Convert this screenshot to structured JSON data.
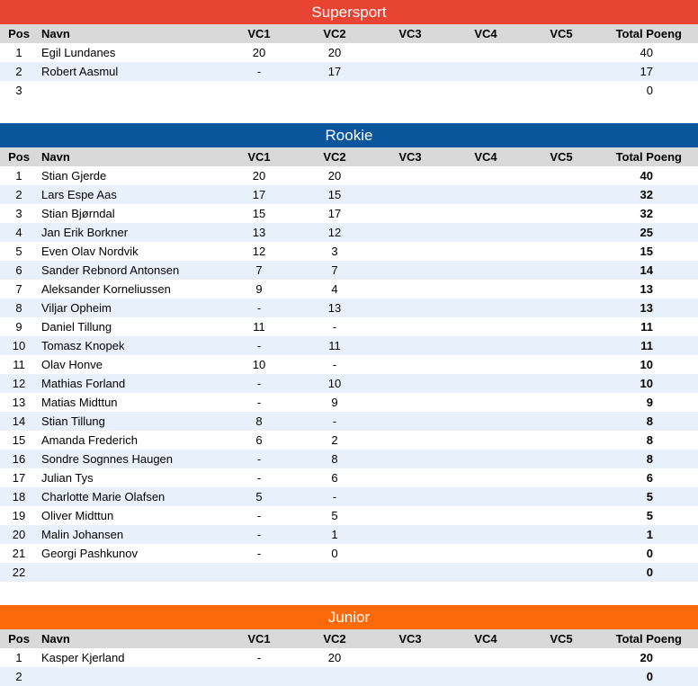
{
  "headers": {
    "pos": "Pos",
    "navn": "Navn",
    "vc1": "VC1",
    "vc2": "VC2",
    "vc3": "VC3",
    "vc4": "VC4",
    "vc5": "VC5",
    "total": "Total Poeng"
  },
  "sections": [
    {
      "title": "Supersport",
      "color": "#e84434",
      "bold_total": false,
      "rows": [
        {
          "pos": "1",
          "navn": "Egil Lundanes",
          "vc1": "20",
          "vc2": "20",
          "vc3": "",
          "vc4": "",
          "vc5": "",
          "total": "40"
        },
        {
          "pos": "2",
          "navn": "Robert Aasmul",
          "vc1": "-",
          "vc2": "17",
          "vc3": "",
          "vc4": "",
          "vc5": "",
          "total": "17"
        },
        {
          "pos": "3",
          "navn": "",
          "vc1": "",
          "vc2": "",
          "vc3": "",
          "vc4": "",
          "vc5": "",
          "total": "0"
        }
      ]
    },
    {
      "title": "Rookie",
      "color": "#0b559c",
      "bold_total": true,
      "rows": [
        {
          "pos": "1",
          "navn": "Stian Gjerde",
          "vc1": "20",
          "vc2": "20",
          "vc3": "",
          "vc4": "",
          "vc5": "",
          "total": "40"
        },
        {
          "pos": "2",
          "navn": "Lars Espe Aas",
          "vc1": "17",
          "vc2": "15",
          "vc3": "",
          "vc4": "",
          "vc5": "",
          "total": "32"
        },
        {
          "pos": "3",
          "navn": "Stian Bjørndal",
          "vc1": "15",
          "vc2": "17",
          "vc3": "",
          "vc4": "",
          "vc5": "",
          "total": "32"
        },
        {
          "pos": "4",
          "navn": "Jan Erik Borkner",
          "vc1": "13",
          "vc2": "12",
          "vc3": "",
          "vc4": "",
          "vc5": "",
          "total": "25"
        },
        {
          "pos": "5",
          "navn": "Even Olav Nordvik",
          "vc1": "12",
          "vc2": "3",
          "vc3": "",
          "vc4": "",
          "vc5": "",
          "total": "15"
        },
        {
          "pos": "6",
          "navn": "Sander Rebnord Antonsen",
          "vc1": "7",
          "vc2": "7",
          "vc3": "",
          "vc4": "",
          "vc5": "",
          "total": "14"
        },
        {
          "pos": "7",
          "navn": "Aleksander Korneliussen",
          "vc1": "9",
          "vc2": "4",
          "vc3": "",
          "vc4": "",
          "vc5": "",
          "total": "13"
        },
        {
          "pos": "8",
          "navn": "Viljar Opheim",
          "vc1": "-",
          "vc2": "13",
          "vc3": "",
          "vc4": "",
          "vc5": "",
          "total": "13"
        },
        {
          "pos": "9",
          "navn": "Daniel Tillung",
          "vc1": "11",
          "vc2": "-",
          "vc3": "",
          "vc4": "",
          "vc5": "",
          "total": "11"
        },
        {
          "pos": "10",
          "navn": "Tomasz Knopek",
          "vc1": "-",
          "vc2": "11",
          "vc3": "",
          "vc4": "",
          "vc5": "",
          "total": "11"
        },
        {
          "pos": "11",
          "navn": "Olav Honve",
          "vc1": "10",
          "vc2": "-",
          "vc3": "",
          "vc4": "",
          "vc5": "",
          "total": "10"
        },
        {
          "pos": "12",
          "navn": "Mathias Forland",
          "vc1": "-",
          "vc2": "10",
          "vc3": "",
          "vc4": "",
          "vc5": "",
          "total": "10"
        },
        {
          "pos": "13",
          "navn": "Matias Midttun",
          "vc1": "-",
          "vc2": "9",
          "vc3": "",
          "vc4": "",
          "vc5": "",
          "total": "9"
        },
        {
          "pos": "14",
          "navn": "Stian Tillung",
          "vc1": "8",
          "vc2": "-",
          "vc3": "",
          "vc4": "",
          "vc5": "",
          "total": "8"
        },
        {
          "pos": "15",
          "navn": "Amanda Frederich",
          "vc1": "6",
          "vc2": "2",
          "vc3": "",
          "vc4": "",
          "vc5": "",
          "total": "8"
        },
        {
          "pos": "16",
          "navn": "Sondre Sognnes Haugen",
          "vc1": "-",
          "vc2": "8",
          "vc3": "",
          "vc4": "",
          "vc5": "",
          "total": "8"
        },
        {
          "pos": "17",
          "navn": "Julian Tys",
          "vc1": "-",
          "vc2": "6",
          "vc3": "",
          "vc4": "",
          "vc5": "",
          "total": "6"
        },
        {
          "pos": "18",
          "navn": "Charlotte Marie Olafsen",
          "vc1": "5",
          "vc2": "-",
          "vc3": "",
          "vc4": "",
          "vc5": "",
          "total": "5"
        },
        {
          "pos": "19",
          "navn": "Oliver Midttun",
          "vc1": "-",
          "vc2": "5",
          "vc3": "",
          "vc4": "",
          "vc5": "",
          "total": "5"
        },
        {
          "pos": "20",
          "navn": "Malin Johansen",
          "vc1": "-",
          "vc2": "1",
          "vc3": "",
          "vc4": "",
          "vc5": "",
          "total": "1"
        },
        {
          "pos": "21",
          "navn": "Georgi Pashkunov",
          "vc1": "-",
          "vc2": "0",
          "vc3": "",
          "vc4": "",
          "vc5": "",
          "total": "0"
        },
        {
          "pos": "22",
          "navn": "",
          "vc1": "",
          "vc2": "",
          "vc3": "",
          "vc4": "",
          "vc5": "",
          "total": "0"
        }
      ]
    },
    {
      "title": "Junior",
      "color": "#fd6a0b",
      "bold_total": true,
      "rows": [
        {
          "pos": "1",
          "navn": "Kasper Kjerland",
          "vc1": "-",
          "vc2": "20",
          "vc3": "",
          "vc4": "",
          "vc5": "",
          "total": "20"
        },
        {
          "pos": "2",
          "navn": "",
          "vc1": "",
          "vc2": "",
          "vc3": "",
          "vc4": "",
          "vc5": "",
          "total": "0"
        }
      ]
    }
  ]
}
